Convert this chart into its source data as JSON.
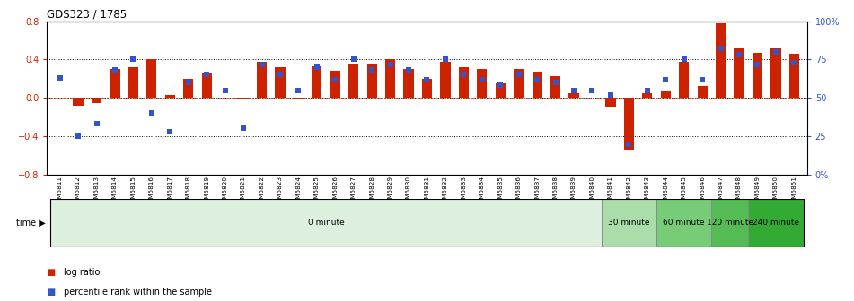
{
  "title": "GDS323 / 1785",
  "samples": [
    "GSM5811",
    "GSM5812",
    "GSM5813",
    "GSM5814",
    "GSM5815",
    "GSM5816",
    "GSM5817",
    "GSM5818",
    "GSM5819",
    "GSM5820",
    "GSM5821",
    "GSM5822",
    "GSM5823",
    "GSM5824",
    "GSM5825",
    "GSM5826",
    "GSM5827",
    "GSM5828",
    "GSM5829",
    "GSM5830",
    "GSM5831",
    "GSM5832",
    "GSM5833",
    "GSM5834",
    "GSM5835",
    "GSM5836",
    "GSM5837",
    "GSM5838",
    "GSM5839",
    "GSM5840",
    "GSM5841",
    "GSM5842",
    "GSM5843",
    "GSM5844",
    "GSM5845",
    "GSM5846",
    "GSM5847",
    "GSM5848",
    "GSM5849",
    "GSM5850",
    "GSM5851"
  ],
  "log_ratio": [
    0.0,
    -0.08,
    -0.05,
    0.3,
    0.32,
    0.4,
    0.03,
    0.2,
    0.26,
    0.0,
    -0.02,
    0.38,
    0.32,
    -0.01,
    0.33,
    0.28,
    0.35,
    0.35,
    0.4,
    0.3,
    0.2,
    0.38,
    0.32,
    0.3,
    0.15,
    0.3,
    0.27,
    0.23,
    0.05,
    0.0,
    -0.09,
    -0.55,
    0.05,
    0.07,
    0.38,
    0.12,
    0.78,
    0.52,
    0.47,
    0.52,
    0.46
  ],
  "percentile": [
    63,
    25,
    33,
    68,
    75,
    40,
    28,
    60,
    65,
    55,
    30,
    72,
    65,
    55,
    70,
    62,
    75,
    68,
    72,
    68,
    62,
    75,
    65,
    62,
    58,
    65,
    62,
    60,
    55,
    55,
    52,
    20,
    55,
    62,
    75,
    62,
    82,
    78,
    72,
    80,
    73
  ],
  "groups": [
    {
      "label": "0 minute",
      "start": 0,
      "end": 30,
      "color": "#ddf0dd"
    },
    {
      "label": "30 minute",
      "start": 30,
      "end": 33,
      "color": "#aaddaa"
    },
    {
      "label": "60 minute",
      "start": 33,
      "end": 36,
      "color": "#77cc77"
    },
    {
      "label": "120 minute",
      "start": 36,
      "end": 38,
      "color": "#55bb55"
    },
    {
      "label": "240 minute",
      "start": 38,
      "end": 41,
      "color": "#33aa33"
    }
  ],
  "bar_color": "#cc2200",
  "blue_color": "#3355cc",
  "ylim": [
    -0.8,
    0.8
  ],
  "left_ticks": [
    -0.8,
    -0.4,
    0.0,
    0.4,
    0.8
  ],
  "right_ticks": [
    0,
    25,
    50,
    75,
    100
  ],
  "right_tick_labels": [
    "0%",
    "25",
    "50",
    "75",
    "100%"
  ]
}
